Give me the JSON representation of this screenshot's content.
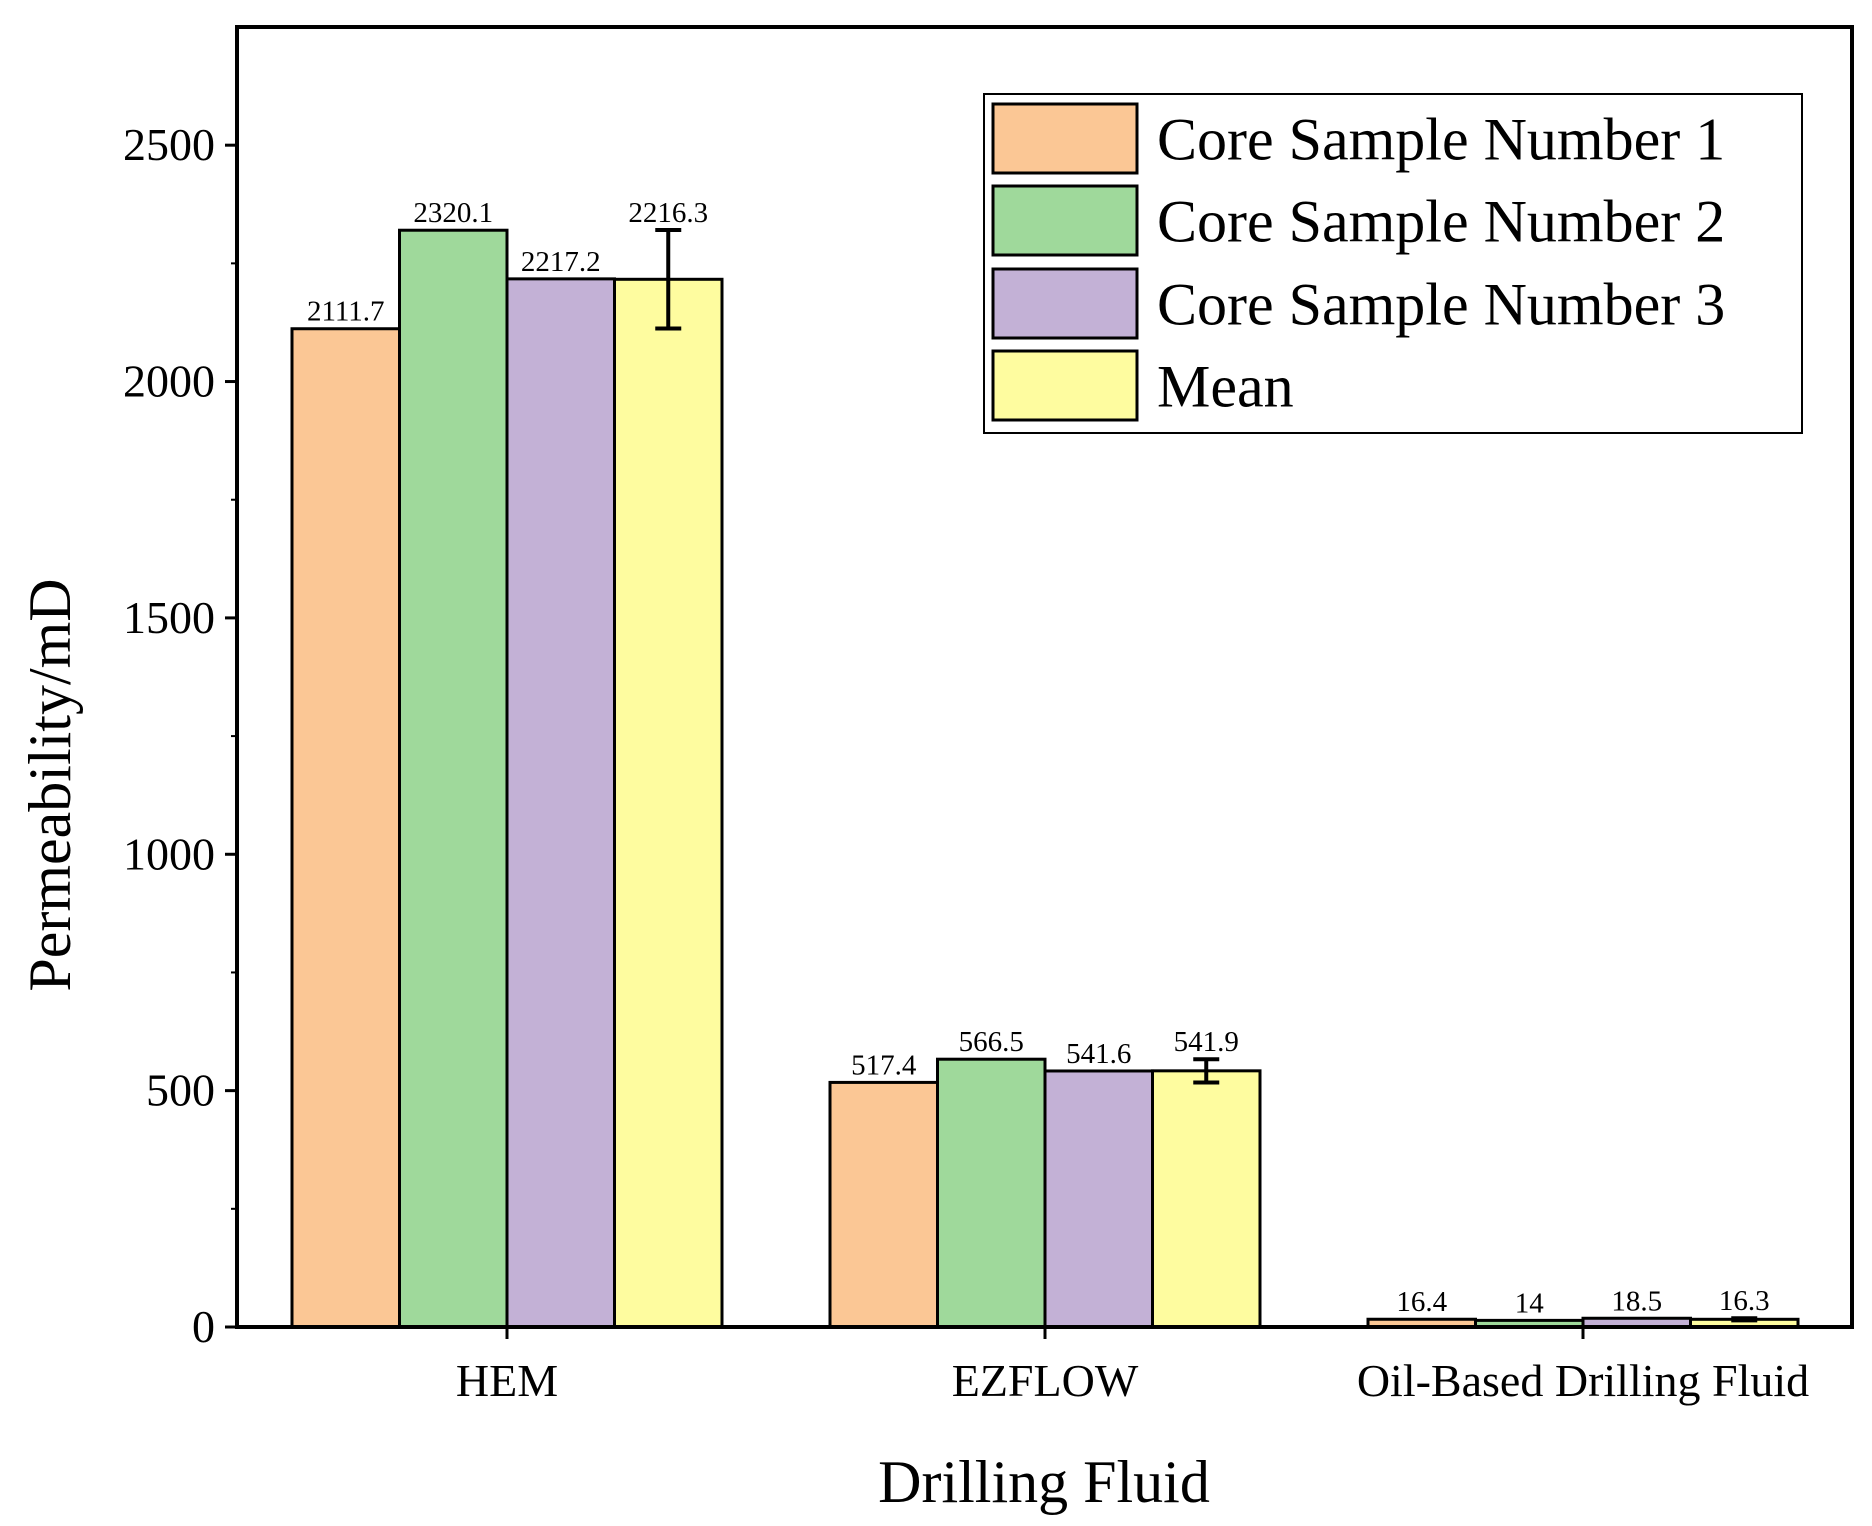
{
  "chart_data": {
    "type": "bar",
    "xlabel": "Drilling Fluid",
    "ylabel": "Permeability/mD",
    "ylim": [
      0,
      2750
    ],
    "yticks": [
      0,
      500,
      1000,
      1500,
      2000,
      2500
    ],
    "ytick_labels": [
      "0",
      "500",
      "1000",
      "1500",
      "2000",
      "2500"
    ],
    "categories": [
      "HEM",
      "EZFLOW",
      "Oil-Based Drilling Fluid"
    ],
    "series": [
      {
        "name": "Core Sample Number 1",
        "color": "#fbc795",
        "values": [
          2111.7,
          517.4,
          16.4
        ],
        "labels": [
          "2111.7",
          "517.4",
          "16.4"
        ]
      },
      {
        "name": "Core Sample Number 2",
        "color": "#9fd99b",
        "values": [
          2320.1,
          566.5,
          14
        ],
        "labels": [
          "2320.1",
          "566.5",
          "14"
        ]
      },
      {
        "name": "Core Sample Number 3",
        "color": "#c3b1d6",
        "values": [
          2217.2,
          541.6,
          18.5
        ],
        "labels": [
          "2217.2",
          "541.6",
          "18.5"
        ]
      },
      {
        "name": "Mean",
        "color": "#fefc9f",
        "values": [
          2216.3,
          541.9,
          16.3
        ],
        "labels": [
          "2216.3",
          "541.9",
          "16.3"
        ],
        "error": [
          104.2,
          24.6,
          2.3
        ]
      }
    ],
    "legend_position": "top-right",
    "grid": false
  }
}
